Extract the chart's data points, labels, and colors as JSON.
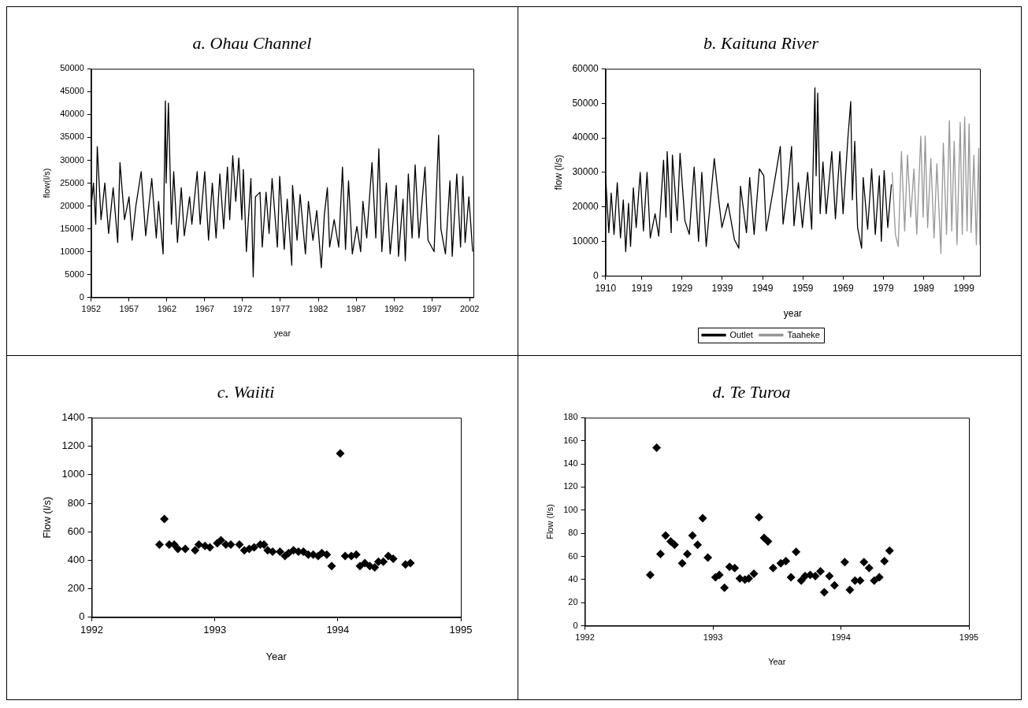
{
  "chart_data": [
    {
      "type": "line",
      "title": "a. Ohau Channel",
      "xlabel": "year",
      "ylabel": "flow(l/s)",
      "color": "#000000",
      "xlim": [
        1952,
        2002.5
      ],
      "xticks": [
        1952,
        1957,
        1962,
        1967,
        1972,
        1977,
        1982,
        1987,
        1992,
        1997,
        2002
      ],
      "ylim": [
        0,
        50000
      ],
      "yticks": [
        0,
        5000,
        10000,
        15000,
        20000,
        25000,
        30000,
        35000,
        40000,
        45000,
        50000
      ],
      "x": [
        1952.0,
        1952.3,
        1952.6,
        1952.8,
        1953.3,
        1953.8,
        1954.3,
        1954.9,
        1955.5,
        1955.8,
        1956.4,
        1957.0,
        1957.4,
        1957.9,
        1958.6,
        1959.2,
        1960.0,
        1960.6,
        1960.9,
        1961.5,
        1961.8,
        1961.9,
        1962.2,
        1962.6,
        1962.9,
        1963.4,
        1963.9,
        1964.3,
        1965.0,
        1965.3,
        1966.0,
        1966.4,
        1967.0,
        1967.5,
        1968.0,
        1968.5,
        1969.0,
        1969.5,
        1970.0,
        1970.3,
        1970.7,
        1971.1,
        1971.5,
        1971.9,
        1972.1,
        1972.5,
        1973.1,
        1973.4,
        1973.7,
        1974.3,
        1974.6,
        1975.1,
        1975.5,
        1975.9,
        1976.6,
        1976.9,
        1977.5,
        1977.9,
        1978.5,
        1978.6,
        1979.2,
        1979.6,
        1980.3,
        1980.7,
        1981.3,
        1981.8,
        1982.4,
        1982.8,
        1983.2,
        1983.5,
        1984.1,
        1984.7,
        1985.2,
        1985.6,
        1986.0,
        1986.5,
        1987.1,
        1987.6,
        1987.9,
        1988.4,
        1989.1,
        1989.6,
        1990.0,
        1990.4,
        1991.0,
        1991.5,
        1992.3,
        1992.6,
        1993.2,
        1993.5,
        1993.9,
        1994.4,
        1994.8,
        1995.3,
        1996.1,
        1996.5,
        1997.3,
        1997.9,
        1998.2,
        1998.8,
        1999.4,
        1999.7,
        2000.3,
        2000.8,
        2001.1,
        2001.4,
        2001.9,
        2002.4
      ],
      "values": [
        20000,
        25000,
        16000,
        33000,
        17000,
        25000,
        14000,
        24000,
        12000,
        29500,
        17000,
        22000,
        12500,
        20000,
        27500,
        13500,
        26000,
        13000,
        21000,
        9500,
        43000,
        25000,
        42500,
        16000,
        27500,
        12000,
        24000,
        13500,
        22000,
        16000,
        27500,
        16000,
        27500,
        12500,
        25000,
        13000,
        27000,
        15000,
        28500,
        17000,
        31000,
        21000,
        30500,
        17000,
        28000,
        10000,
        26000,
        4500,
        22000,
        23000,
        11000,
        23000,
        14000,
        26000,
        11000,
        26500,
        10500,
        21500,
        7000,
        24500,
        12500,
        22500,
        9500,
        21000,
        12500,
        19000,
        6500,
        18000,
        24000,
        11000,
        17000,
        11000,
        28500,
        10500,
        25500,
        9500,
        15500,
        10000,
        21000,
        13000,
        29500,
        13000,
        32500,
        10000,
        25000,
        9500,
        24500,
        9000,
        21500,
        8000,
        27000,
        13000,
        29000,
        13000,
        28500,
        12500,
        10000,
        35500,
        15000,
        9500,
        25500,
        9000,
        27000,
        11000,
        26500,
        12000,
        22000,
        10000
      ]
    },
    {
      "type": "line",
      "title": "b. Kaituna River",
      "xlabel": "year",
      "ylabel": "flow (l/s)",
      "legend": "bottom",
      "xlim": [
        1910,
        2003
      ],
      "xticks": [
        1910,
        1919,
        1929,
        1939,
        1949,
        1959,
        1969,
        1979,
        1989,
        1999
      ],
      "ylim": [
        0,
        60000
      ],
      "yticks": [
        0,
        10000,
        20000,
        30000,
        40000,
        50000,
        60000
      ],
      "series": [
        {
          "name": "Outlet",
          "color": "#000000",
          "x": [
            1910.0,
            1910.8,
            1911.4,
            1912.1,
            1912.9,
            1913.7,
            1914.4,
            1915.0,
            1915.7,
            1916.2,
            1916.9,
            1917.6,
            1918.6,
            1919.4,
            1920.3,
            1921.1,
            1922.3,
            1923.2,
            1924.4,
            1925.0,
            1925.3,
            1926.3,
            1926.6,
            1927.8,
            1928.5,
            1929.7,
            1930.8,
            1932.0,
            1933.1,
            1933.9,
            1935.0,
            1937.0,
            1938.1,
            1938.9,
            1940.4,
            1942.0,
            1943.1,
            1943.5,
            1945.0,
            1945.8,
            1946.9,
            1948.2,
            1949.3,
            1949.9,
            1951.5,
            1953.4,
            1954.1,
            1955.3,
            1956.2,
            1956.8,
            1957.9,
            1958.9,
            1960.2,
            1961.2,
            1962.0,
            1962.3,
            1962.7,
            1963.3,
            1964.0,
            1964.8,
            1966.2,
            1967.1,
            1968.2,
            1969.0,
            1970.2,
            1970.9,
            1971.3,
            1971.9,
            1972.6,
            1973.6,
            1974.0,
            1975.1,
            1976.1,
            1977.0,
            1978.0,
            1978.5,
            1979.2,
            1980.1,
            1981.0
          ],
          "values": [
            29000,
            12500,
            24000,
            12000,
            27000,
            11000,
            22000,
            7000,
            21000,
            8500,
            25500,
            14000,
            30000,
            13000,
            30000,
            11000,
            18000,
            11500,
            33500,
            17000,
            36000,
            12500,
            35000,
            16000,
            35500,
            16000,
            12000,
            31500,
            10000,
            30000,
            8500,
            34000,
            22000,
            14000,
            21000,
            10500,
            8000,
            26000,
            12500,
            28500,
            12000,
            31000,
            29000,
            13000,
            24000,
            37500,
            15000,
            26000,
            37500,
            14500,
            27000,
            14000,
            30000,
            13500,
            54500,
            29000,
            53000,
            18000,
            33000,
            18000,
            36000,
            16500,
            36000,
            18000,
            40000,
            50500,
            22000,
            39000,
            14000,
            8000,
            28500,
            13500,
            31000,
            12000,
            29000,
            10000,
            30500,
            14000,
            26500
          ]
        },
        {
          "name": "Taaheke",
          "color": "#969696",
          "x": [
            1981.2,
            1982.0,
            1982.7,
            1983.5,
            1984.3,
            1985.0,
            1985.8,
            1986.6,
            1987.3,
            1988.3,
            1988.9,
            1989.4,
            1990.0,
            1990.8,
            1991.6,
            1992.3,
            1993.3,
            1993.9,
            1994.7,
            1995.4,
            1996.0,
            1996.6,
            1997.3,
            1998.1,
            1998.6,
            1999.2,
            1999.8,
            2000.3,
            2000.8,
            2001.5,
            2002.1,
            2002.7,
            2003.0
          ],
          "values": [
            30000,
            12000,
            8500,
            36000,
            13000,
            35000,
            17000,
            31000,
            12000,
            40500,
            17000,
            40500,
            14000,
            34000,
            11000,
            32500,
            6500,
            38500,
            12000,
            45000,
            13000,
            39000,
            9000,
            44500,
            12000,
            46000,
            13000,
            44000,
            12500,
            35000,
            9000,
            37000,
            9000
          ]
        }
      ]
    },
    {
      "type": "scatter",
      "title": "c. Waiiti",
      "xlabel": "Year",
      "ylabel": "Flow (l/s)",
      "marker": "diamond",
      "color": "#000000",
      "xlim": [
        1992,
        1995
      ],
      "xticks": [
        1992,
        1993,
        1994,
        1995
      ],
      "ylim": [
        0,
        1400
      ],
      "yticks": [
        0,
        200,
        400,
        600,
        800,
        1000,
        1200,
        1400
      ],
      "x": [
        1992.55,
        1992.59,
        1992.63,
        1992.67,
        1992.7,
        1992.76,
        1992.84,
        1992.87,
        1992.92,
        1992.96,
        1993.02,
        1993.05,
        1993.09,
        1993.13,
        1993.2,
        1993.24,
        1993.28,
        1993.32,
        1993.37,
        1993.4,
        1993.43,
        1993.47,
        1993.53,
        1993.57,
        1993.6,
        1993.64,
        1993.68,
        1993.72,
        1993.76,
        1993.8,
        1993.84,
        1993.87,
        1993.91,
        1993.95,
        1994.02,
        1994.06,
        1994.11,
        1994.15,
        1994.18,
        1994.22,
        1994.26,
        1994.3,
        1994.33,
        1994.37,
        1994.41,
        1994.45,
        1994.55,
        1994.59
      ],
      "values": [
        510,
        690,
        510,
        510,
        480,
        480,
        470,
        510,
        500,
        490,
        520,
        540,
        510,
        510,
        510,
        470,
        480,
        490,
        510,
        510,
        470,
        460,
        460,
        430,
        450,
        470,
        460,
        460,
        440,
        440,
        430,
        450,
        440,
        360,
        1150,
        430,
        430,
        440,
        360,
        380,
        360,
        350,
        390,
        390,
        430,
        410,
        370,
        380
      ]
    },
    {
      "type": "scatter",
      "title": "d. Te Turoa",
      "xlabel": "Year",
      "ylabel": "Flow (l/s)",
      "marker": "diamond",
      "color": "#000000",
      "xlim": [
        1992,
        1995
      ],
      "xticks": [
        1992,
        1993,
        1994,
        1995
      ],
      "ylim": [
        0,
        180
      ],
      "yticks": [
        0,
        20,
        40,
        60,
        80,
        100,
        120,
        140,
        160,
        180
      ],
      "x": [
        1992.51,
        1992.56,
        1992.59,
        1992.63,
        1992.67,
        1992.7,
        1992.76,
        1992.8,
        1992.84,
        1992.88,
        1992.92,
        1992.96,
        1993.02,
        1993.05,
        1993.09,
        1993.13,
        1993.17,
        1993.21,
        1993.25,
        1993.28,
        1993.32,
        1993.36,
        1993.4,
        1993.43,
        1993.47,
        1993.53,
        1993.57,
        1993.61,
        1993.65,
        1993.69,
        1993.72,
        1993.76,
        1993.8,
        1993.84,
        1993.87,
        1993.91,
        1993.95,
        1994.03,
        1994.07,
        1994.11,
        1994.15,
        1994.18,
        1994.22,
        1994.26,
        1994.3,
        1994.34,
        1994.38
      ],
      "values": [
        44,
        154,
        62,
        78,
        73,
        70,
        54,
        62,
        78,
        70,
        93,
        59,
        42,
        44,
        33,
        51,
        50,
        41,
        40,
        41,
        45,
        94,
        76,
        73,
        50,
        54,
        56,
        42,
        64,
        39,
        43,
        44,
        43,
        47,
        29,
        43,
        35,
        55,
        31,
        39,
        39,
        55,
        50,
        39,
        42,
        56,
        65
      ]
    }
  ]
}
